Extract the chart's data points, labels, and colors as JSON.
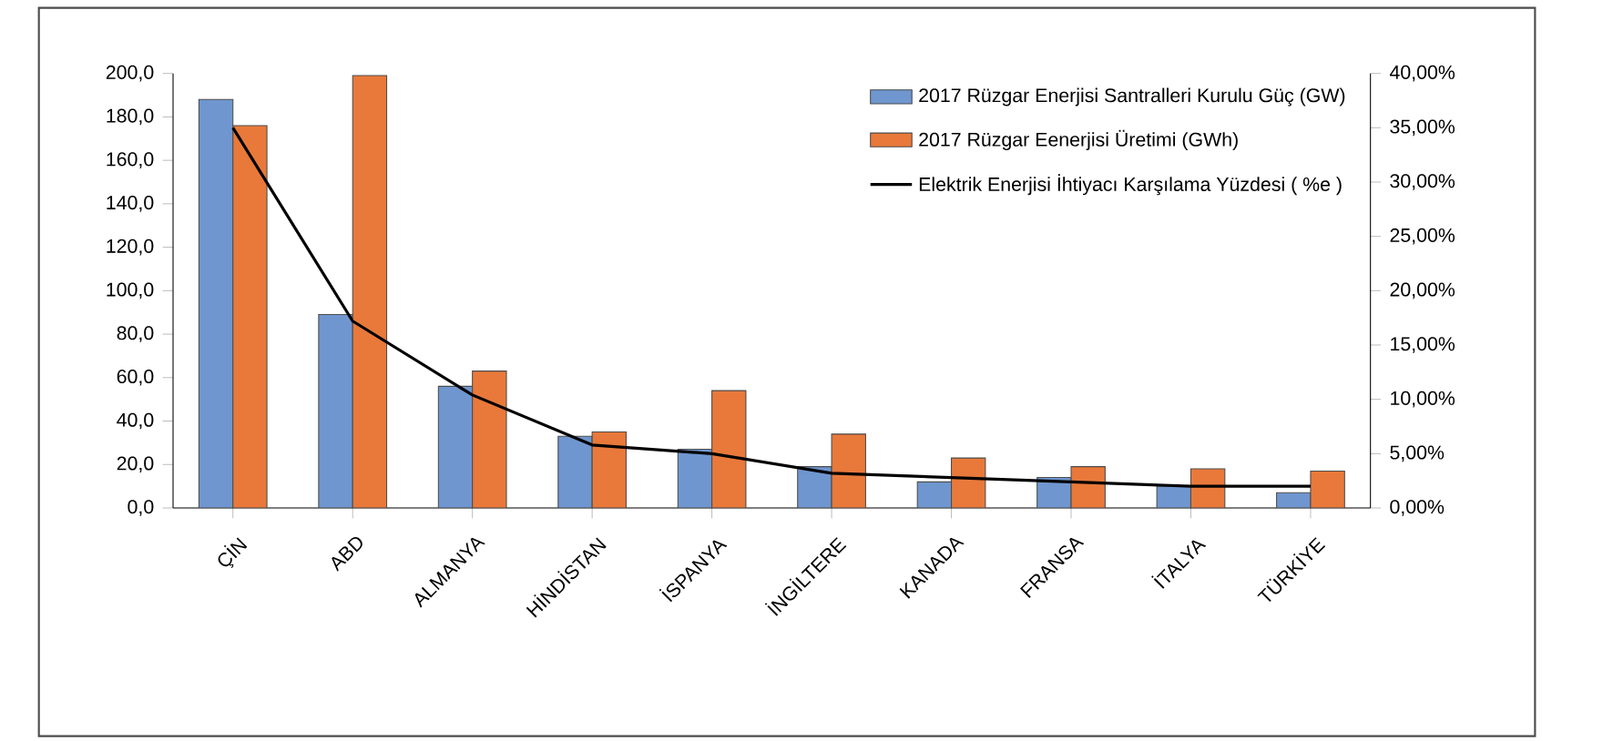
{
  "chart_data": {
    "type": "bar",
    "categories": [
      "ÇİN",
      "ABD",
      "ALMANYA",
      "HİNDİSTAN",
      "İSPANYA",
      "İNGİLTERE",
      "KANADA",
      "FRANSA",
      "İTALYA",
      "TÜRKİYE"
    ],
    "series": [
      {
        "name": "2017  Rüzgar Enerjisi Santralleri Kurulu Güç (GW)",
        "color": "#6f96cf",
        "values": [
          188,
          89,
          56,
          33,
          27,
          19,
          12,
          14,
          10,
          7
        ]
      },
      {
        "name": "2017 Rüzgar Eenerjisi Üretimi (GWh)",
        "color": "#e8793a",
        "values": [
          176,
          199,
          63,
          35,
          54,
          34,
          23,
          19,
          18,
          17
        ]
      },
      {
        "name": "Elektrik Enerjisi İhtiyacı Karşılama Yüzdesi ( %e )",
        "type": "line",
        "axis": "y2",
        "color": "#000000",
        "values": [
          35,
          17.2,
          10.4,
          5.8,
          5,
          3.2,
          2.8,
          2.4,
          2,
          2
        ]
      }
    ],
    "ylim": [
      0,
      200
    ],
    "yticks": [
      {
        "value": 0,
        "label": "0,0"
      },
      {
        "value": 20,
        "label": "20,0"
      },
      {
        "value": 40,
        "label": "40,0"
      },
      {
        "value": 60,
        "label": "60,0"
      },
      {
        "value": 80,
        "label": "80,0"
      },
      {
        "value": 100,
        "label": "100,0"
      },
      {
        "value": 120,
        "label": "120,0"
      },
      {
        "value": 140,
        "label": "140,0"
      },
      {
        "value": 160,
        "label": "160,0"
      },
      {
        "value": 180,
        "label": "180,0"
      },
      {
        "value": 200,
        "label": "200,0"
      }
    ],
    "y2lim": [
      0,
      40
    ],
    "y2ticks": [
      {
        "value": 0,
        "label": "0,00%"
      },
      {
        "value": 5,
        "label": "5,00%"
      },
      {
        "value": 10,
        "label": "10,00%"
      },
      {
        "value": 15,
        "label": "15,00%"
      },
      {
        "value": 20,
        "label": "20,00%"
      },
      {
        "value": 25,
        "label": "25,00%"
      },
      {
        "value": 30,
        "label": "30,00%"
      },
      {
        "value": 35,
        "label": "35,00%"
      },
      {
        "value": 40,
        "label": "40,00%"
      }
    ],
    "legend": "top right",
    "grid": false,
    "marker": "none",
    "line_style": "solid"
  }
}
